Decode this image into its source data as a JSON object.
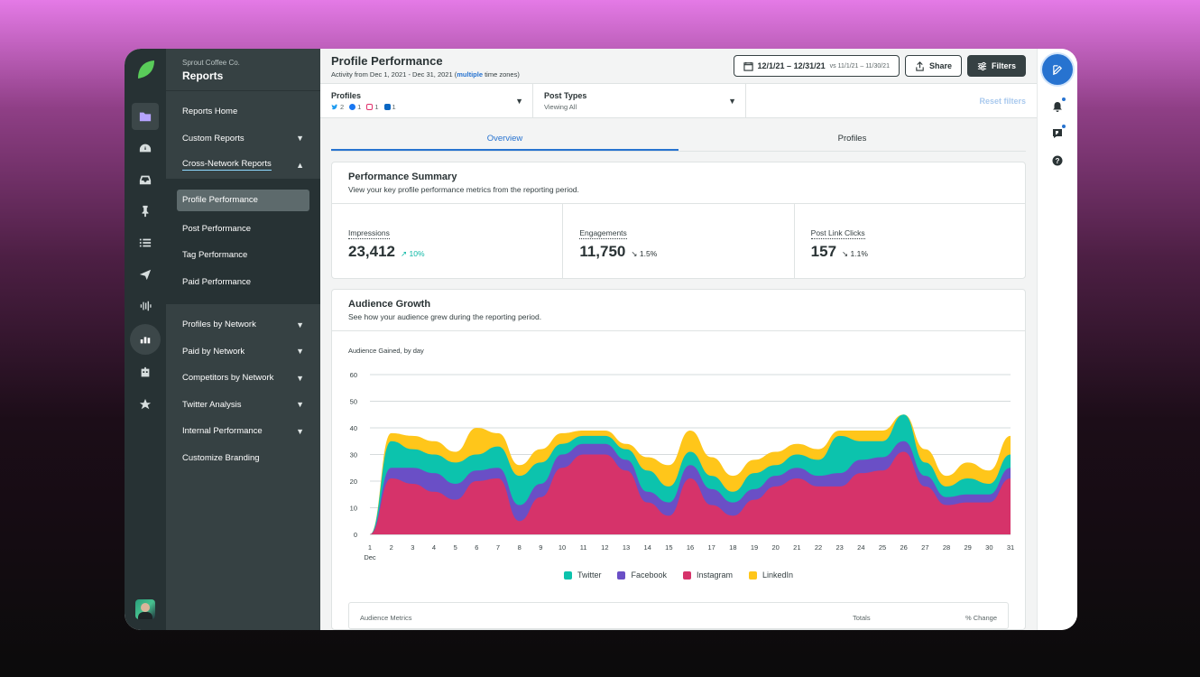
{
  "nav": {
    "company": "Sprout Coffee Co.",
    "title": "Reports",
    "items_top": [
      {
        "label": "Reports Home",
        "chevron": ""
      },
      {
        "label": "Custom Reports",
        "chevron": "▼"
      },
      {
        "label": "Cross-Network Reports",
        "chevron": "▲"
      }
    ],
    "sub_items": [
      "Profile Performance",
      "Post Performance",
      "Tag Performance",
      "Paid Performance"
    ],
    "items_bottom": [
      {
        "label": "Profiles by Network",
        "chevron": "▼"
      },
      {
        "label": "Paid by Network",
        "chevron": "▼"
      },
      {
        "label": "Competitors by Network",
        "chevron": "▼"
      },
      {
        "label": "Twitter Analysis",
        "chevron": "▼"
      },
      {
        "label": "Internal Performance",
        "chevron": "▼"
      },
      {
        "label": "Customize Branding",
        "chevron": ""
      }
    ]
  },
  "header": {
    "title": "Profile Performance",
    "subtitle_prefix": "Activity from Dec 1, 2021 - Dec 31, 2021 (",
    "subtitle_link": "multiple",
    "subtitle_suffix": " time zones)",
    "date_range": "12/1/21 – 12/31/21",
    "compare_prefix": "vs",
    "compare_range": "11/1/21 – 11/30/21",
    "share_label": "Share",
    "filters_label": "Filters"
  },
  "filters": {
    "profiles_title": "Profiles",
    "profile_counts": {
      "twitter": "2",
      "facebook": "1",
      "instagram": "1",
      "linkedin": "1"
    },
    "post_types_title": "Post Types",
    "post_types_value": "Viewing All",
    "reset_label": "Reset filters"
  },
  "tabs": [
    "Overview",
    "Profiles"
  ],
  "summary": {
    "title": "Performance Summary",
    "subtitle": "View your key profile performance metrics from the reporting period.",
    "metrics": [
      {
        "label": "Impressions",
        "value": "23,412",
        "arrow": "↗",
        "change": "10%",
        "direction": "up"
      },
      {
        "label": "Engagements",
        "value": "11,750",
        "arrow": "↘",
        "change": "1.5%",
        "direction": "down"
      },
      {
        "label": "Post Link Clicks",
        "value": "157",
        "arrow": "↘",
        "change": "1.1%",
        "direction": "down"
      }
    ]
  },
  "growth": {
    "title": "Audience Growth",
    "subtitle": "See how your audience grew during the reporting period.",
    "table_col1": "Audience Metrics",
    "table_col2": "Totals",
    "table_col3": "% Change"
  },
  "colors": {
    "twitter": "#0cc3ad",
    "facebook": "#6a4fc6",
    "instagram": "#d6336a",
    "linkedin": "#ffc61a",
    "accent": "#2773d0"
  },
  "chart_data": {
    "type": "area",
    "title": "Audience Gained, by day",
    "stacked": true,
    "x": [
      "1",
      "2",
      "3",
      "4",
      "5",
      "6",
      "7",
      "8",
      "9",
      "10",
      "11",
      "12",
      "13",
      "14",
      "15",
      "16",
      "17",
      "18",
      "19",
      "20",
      "21",
      "22",
      "23",
      "24",
      "25",
      "26",
      "27",
      "28",
      "29",
      "30",
      "31"
    ],
    "x_month_label": "Dec",
    "ylim": [
      0,
      60
    ],
    "yticks": [
      0,
      10,
      20,
      30,
      40,
      50,
      60
    ],
    "grid": true,
    "legend": "bottom",
    "series": [
      {
        "name": "Instagram",
        "color": "#d6336a",
        "values": [
          0,
          21,
          19,
          16,
          13,
          20,
          21,
          5,
          14,
          25,
          30,
          30,
          24,
          12,
          7,
          21,
          11,
          7,
          13,
          18,
          21,
          18,
          18,
          23,
          24,
          31,
          18,
          11,
          12,
          12,
          21
        ]
      },
      {
        "name": "Facebook",
        "color": "#6a4fc6",
        "values": [
          0,
          4,
          6,
          7,
          6,
          4,
          4,
          6,
          5,
          5,
          4,
          4,
          4,
          4,
          5,
          5,
          6,
          5,
          4,
          4,
          4,
          4,
          5,
          5,
          5,
          4,
          4,
          3,
          3,
          3,
          4
        ]
      },
      {
        "name": "Twitter",
        "color": "#0cc3ad",
        "values": [
          0,
          10,
          7,
          7,
          8,
          6,
          8,
          11,
          8,
          4,
          3,
          3,
          4,
          8,
          6,
          5,
          5,
          4,
          6,
          4,
          5,
          6,
          14,
          7,
          6,
          10,
          5,
          4,
          6,
          4,
          5
        ]
      },
      {
        "name": "LinkedIn",
        "color": "#ffc61a",
        "values": [
          0,
          3,
          5,
          5,
          4,
          10,
          5,
          4,
          5,
          4,
          2,
          2,
          2,
          5,
          8,
          8,
          7,
          6,
          5,
          5,
          4,
          4,
          2,
          4,
          4,
          0,
          5,
          4,
          6,
          5,
          7
        ]
      }
    ]
  }
}
